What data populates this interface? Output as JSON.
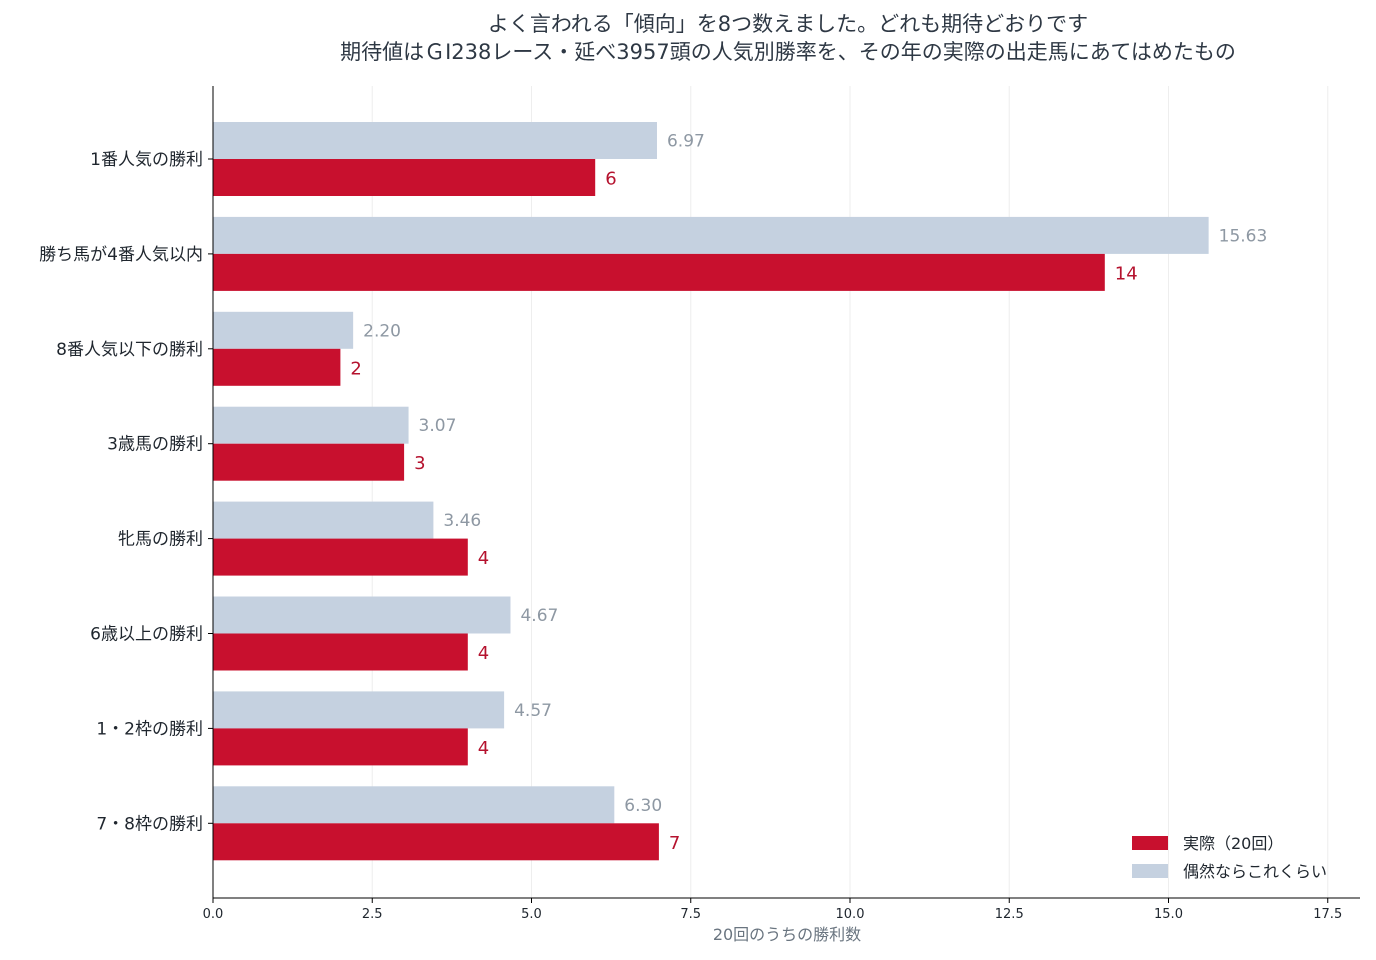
{
  "chart_data": {
    "type": "bar",
    "orientation": "horizontal",
    "title": "よく言われる「傾向」を8つ数えました。どれも期待どおりです",
    "subtitle": "期待値はＧⅠ238レース・延べ3957頭の人気別勝率を、その年の実際の出走馬にあてはめたもの",
    "xlabel": "20回のうちの勝利数",
    "ylabel": "",
    "xlim": [
      0,
      18
    ],
    "xticks": [
      "0.0",
      "2.5",
      "5.0",
      "7.5",
      "10.0",
      "12.5",
      "15.0",
      "17.5"
    ],
    "xtick_values": [
      0,
      2.5,
      5,
      7.5,
      10,
      12.5,
      15,
      17.5
    ],
    "grid": "vertical",
    "legend_position": "bottom-right",
    "categories": [
      "1番人気の勝利",
      "勝ち馬が4番人気以内",
      "8番人気以下の勝利",
      "3歳馬の勝利",
      "牝馬の勝利",
      "6歳以上の勝利",
      "1・2枠の勝利",
      "7・8枠の勝利"
    ],
    "series": [
      {
        "name": "実際（20回）",
        "color": "#c8102e",
        "values": [
          6,
          14,
          2,
          3,
          4,
          4,
          4,
          7
        ],
        "labels": [
          "6",
          "14",
          "2",
          "3",
          "4",
          "4",
          "4",
          "7"
        ]
      },
      {
        "name": "偶然ならこれくらい",
        "color": "#c5d1e0",
        "values": [
          6.97,
          15.63,
          2.2,
          3.07,
          3.46,
          4.67,
          4.57,
          6.3
        ],
        "labels": [
          "6.97",
          "15.63",
          "2.20",
          "3.07",
          "3.46",
          "4.67",
          "4.57",
          "6.30"
        ]
      }
    ]
  }
}
